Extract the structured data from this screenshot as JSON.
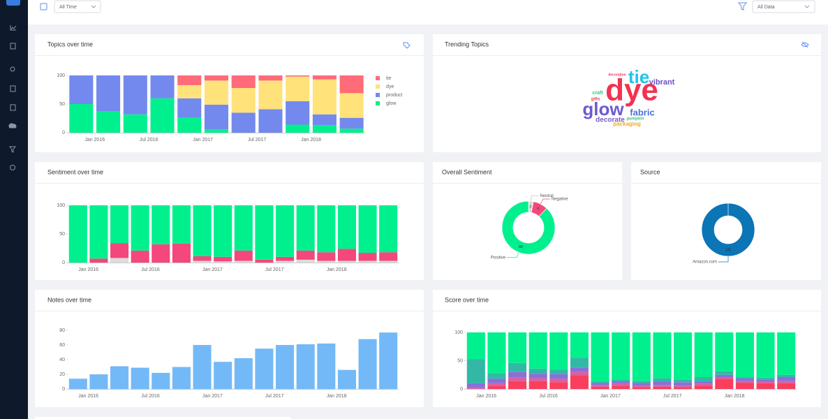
{
  "toolbar": {
    "date_filter": "All Time",
    "data_filter": "All Data"
  },
  "chart_data": [
    {
      "type": "stacked-bar",
      "title": "Topics over time",
      "categories": [
        null,
        "Jan 2016",
        null,
        "Jul 2016",
        null,
        "Jan 2017",
        null,
        "Jul 2017",
        null,
        "Jan 2018",
        null
      ],
      "ylim": [
        0,
        100
      ],
      "yticks": [
        0,
        50,
        100
      ],
      "legend": "right",
      "series": [
        {
          "name": "glow",
          "color": "#00f08e",
          "values": [
            50,
            37,
            32,
            60,
            26,
            6,
            0,
            0,
            14,
            13,
            7
          ]
        },
        {
          "name": "product",
          "color": "#7389ee",
          "values": [
            50,
            63,
            68,
            40,
            34,
            43,
            35,
            41,
            41,
            19,
            19
          ]
        },
        {
          "name": "dye",
          "color": "#ffe27a",
          "values": [
            0,
            0,
            0,
            0,
            23,
            42,
            43,
            50,
            43,
            61,
            43
          ]
        },
        {
          "name": "tie",
          "color": "#ff6b78",
          "values": [
            0,
            0,
            0,
            0,
            17,
            9,
            22,
            9,
            2,
            7,
            31
          ]
        }
      ]
    },
    {
      "type": "wordcloud",
      "title": "Trending Topics",
      "words": [
        {
          "text": "dye",
          "color": "#f2334f"
        },
        {
          "text": "tie",
          "color": "#1fc6e8"
        },
        {
          "text": "vibrant",
          "color": "#6a4fc4"
        },
        {
          "text": "glow",
          "color": "#6b5bd0"
        },
        {
          "text": "fabric",
          "color": "#4b6fdc"
        },
        {
          "text": "decorate",
          "color": "#7a5cc8"
        },
        {
          "text": "pumpkin",
          "color": "#2dc97a"
        },
        {
          "text": "packaging",
          "color": "#f5a623"
        },
        {
          "text": "craft",
          "color": "#2dc97a"
        },
        {
          "text": "gifts",
          "color": "#e8415a"
        },
        {
          "text": "decoration",
          "color": "#e8415a"
        }
      ]
    },
    {
      "type": "stacked-bar",
      "title": "Sentiment over time",
      "categories": [
        null,
        "Jan 2016",
        null,
        null,
        "Jul 2016",
        null,
        null,
        "Jan 2017",
        null,
        null,
        "Jul 2017",
        null,
        null,
        "Jan 2018",
        null,
        null
      ],
      "ylim": [
        0,
        100
      ],
      "yticks": [
        0,
        50,
        100
      ],
      "series": [
        {
          "name": "Neutral",
          "color": "#dcdcdc",
          "values": [
            0,
            0,
            8,
            0,
            0,
            0,
            3,
            2,
            3,
            0,
            3,
            5,
            3,
            3,
            3,
            3
          ]
        },
        {
          "name": "Negative",
          "color": "#f4477c",
          "values": [
            0,
            7,
            26,
            21,
            32,
            33,
            8,
            8,
            18,
            5,
            7,
            16,
            15,
            21,
            14,
            15
          ]
        },
        {
          "name": "Positive",
          "color": "#00f08e",
          "values": [
            100,
            93,
            66,
            79,
            68,
            67,
            89,
            90,
            79,
            95,
            90,
            79,
            82,
            76,
            83,
            82
          ]
        }
      ]
    },
    {
      "type": "pie",
      "title": "Overall Sentiment",
      "categories": [
        "Neutral",
        "Negative",
        "Positive"
      ],
      "values": [
        3,
        9,
        88
      ],
      "colors": [
        "#dcdcdc",
        "#f4477c",
        "#00f08e"
      ]
    },
    {
      "type": "pie",
      "title": "Source",
      "categories": [
        "Amazon.com"
      ],
      "values": [
        100
      ],
      "colors": [
        "#0b75b6"
      ]
    },
    {
      "type": "bar",
      "title": "Notes over time",
      "categories": [
        null,
        "Jan 2016",
        null,
        null,
        "Jul 2016",
        null,
        null,
        "Jan 2017",
        null,
        null,
        "Jul 2017",
        null,
        null,
        "Jan 2018",
        null,
        null
      ],
      "values": [
        14,
        20,
        31,
        29,
        22,
        30,
        60,
        37,
        42,
        55,
        60,
        61,
        62,
        26,
        68,
        77
      ],
      "color": "#74b9f7",
      "ylim": [
        0,
        80
      ],
      "yticks": [
        0,
        20,
        40,
        60,
        80
      ]
    },
    {
      "type": "stacked-bar",
      "title": "Score over time",
      "categories": [
        null,
        "Jan 2016",
        null,
        null,
        "Jul 2016",
        null,
        null,
        "Jan 2017",
        null,
        null,
        "Jul 2017",
        null,
        null,
        "Jan 2018",
        null,
        null
      ],
      "ylim": [
        0,
        100
      ],
      "yticks": [
        0,
        50,
        100
      ],
      "series": [
        {
          "color": "#fa3e5e",
          "values": [
            0,
            5,
            14,
            14,
            12,
            24,
            4,
            5,
            3,
            4,
            3,
            6,
            18,
            11,
            10,
            10
          ]
        },
        {
          "color": "#d9609f",
          "values": [
            2,
            5,
            6,
            5,
            6,
            6,
            3,
            4,
            3,
            3,
            3,
            3,
            3,
            3,
            3,
            4
          ]
        },
        {
          "color": "#8a70d8",
          "values": [
            8,
            8,
            10,
            8,
            8,
            8,
            4,
            4,
            5,
            6,
            6,
            4,
            4,
            5,
            4,
            7
          ]
        },
        {
          "color": "#34b8a6",
          "values": [
            43,
            10,
            16,
            9,
            8,
            17,
            2,
            4,
            3,
            6,
            5,
            8,
            6,
            2,
            3,
            4
          ]
        },
        {
          "color": "#00f08e",
          "values": [
            47,
            72,
            54,
            64,
            66,
            45,
            87,
            83,
            86,
            81,
            83,
            79,
            69,
            79,
            80,
            75
          ]
        }
      ]
    }
  ]
}
